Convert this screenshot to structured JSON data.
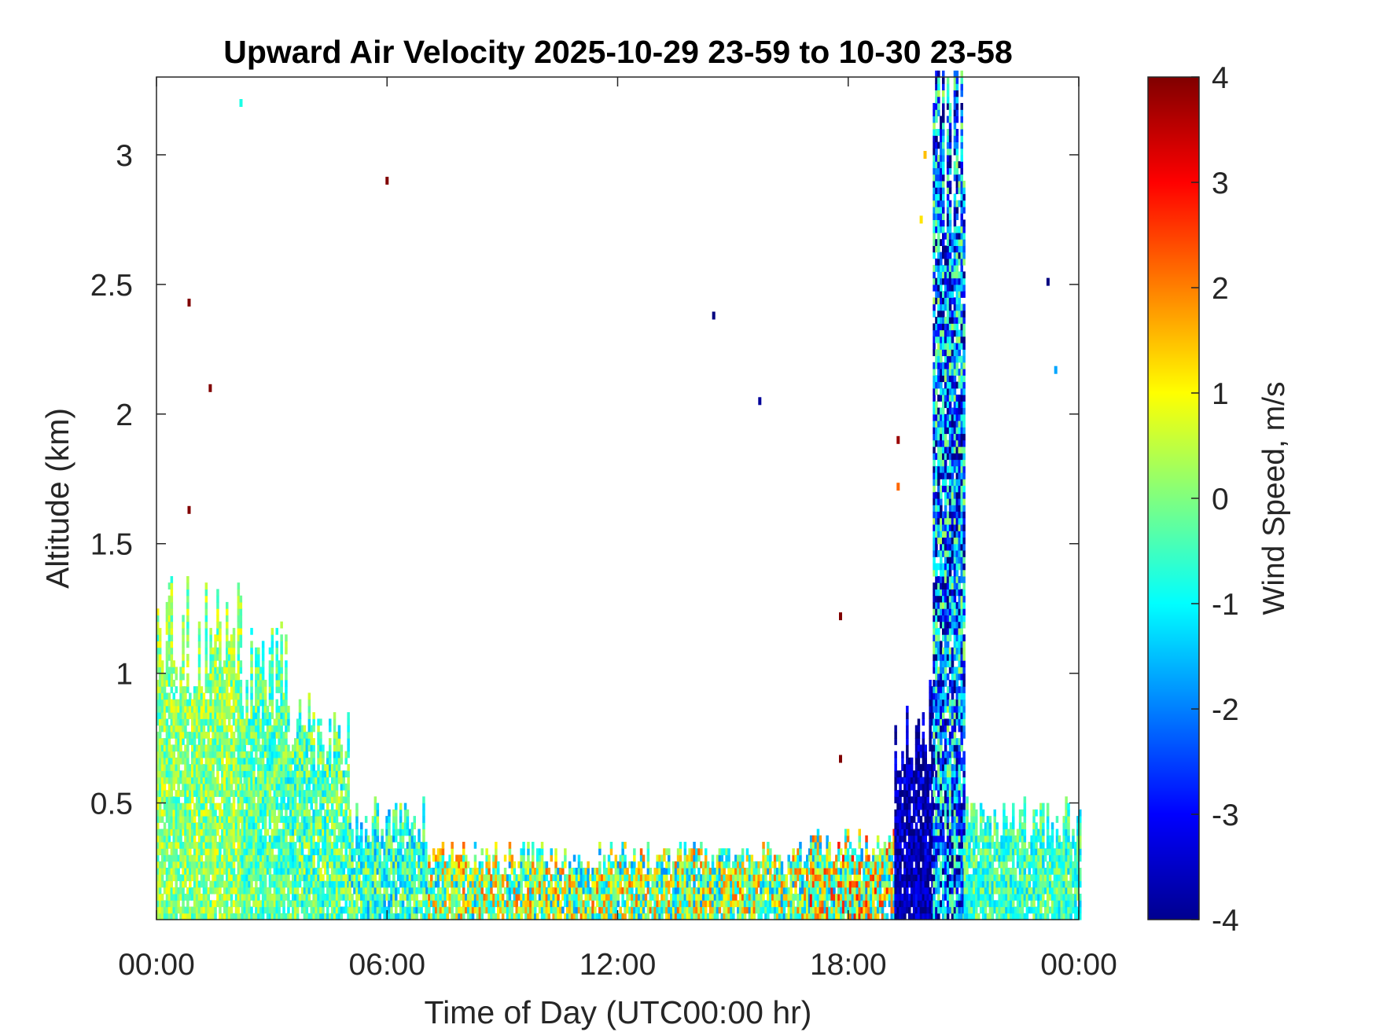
{
  "chart_data": {
    "type": "heatmap",
    "title": "Upward Air Velocity 2025-10-29 23-59 to 10-30 23-58",
    "xlabel": "Time of Day (UTC00:00 hr)",
    "ylabel": "Altitude (km)",
    "xlim": [
      0,
      24
    ],
    "ylim": [
      0.05,
      3.3
    ],
    "x_ticks": [
      0,
      6,
      12,
      18,
      24
    ],
    "x_tick_labels": [
      "00:00",
      "06:00",
      "12:00",
      "18:00",
      "00:00"
    ],
    "y_ticks": [
      0.5,
      1,
      1.5,
      2,
      2.5,
      3
    ],
    "y_tick_labels": [
      "0.5",
      "1",
      "1.5",
      "2",
      "2.5",
      "3"
    ],
    "colorbar": {
      "label": "Wind Speed, m/s",
      "range": [
        -4,
        4
      ],
      "colormap": "jet",
      "ticks": [
        -4,
        -3,
        -2,
        -1,
        0,
        1,
        2,
        3,
        4
      ],
      "tick_labels": [
        "-4",
        "-3",
        "-2",
        "-1",
        "0",
        "1",
        "2",
        "3",
        "4"
      ]
    },
    "grid": false,
    "regions": [
      {
        "x": [
          0,
          2.2
        ],
        "y_top": 1.25,
        "mean_velocity": 0.1,
        "spread": 0.6
      },
      {
        "x": [
          2.2,
          3.4
        ],
        "y_top": 1.1,
        "mean_velocity": -0.3,
        "spread": 0.6
      },
      {
        "x": [
          3.4,
          5.0
        ],
        "y_top": 0.8,
        "mean_velocity": -0.3,
        "spread": 0.7
      },
      {
        "x": [
          5.0,
          7.0
        ],
        "y_top": 0.45,
        "mean_velocity": -0.6,
        "spread": 0.8
      },
      {
        "x": [
          7.0,
          17.0
        ],
        "y_top": 0.3,
        "mean_velocity": 0.2,
        "spread": 1.3
      },
      {
        "x": [
          17.0,
          19.2
        ],
        "y_top": 0.35,
        "mean_velocity": 0.5,
        "spread": 1.5
      },
      {
        "x": [
          19.2,
          20.2
        ],
        "y_top": 0.85,
        "mean_velocity": -3.6,
        "spread": 0.5
      },
      {
        "x": [
          20.2,
          21.0
        ],
        "y_top": 3.3,
        "mean_velocity": -2.0,
        "spread": 1.5
      },
      {
        "x": [
          21.0,
          24
        ],
        "y_top": 0.45,
        "mean_velocity": -0.5,
        "spread": 0.6
      }
    ],
    "isolated_points": [
      {
        "x": 0.85,
        "y": 2.43,
        "v": 4
      },
      {
        "x": 1.4,
        "y": 2.1,
        "v": 4
      },
      {
        "x": 0.85,
        "y": 1.63,
        "v": 4
      },
      {
        "x": 6.0,
        "y": 2.9,
        "v": 4
      },
      {
        "x": 14.5,
        "y": 2.38,
        "v": -4
      },
      {
        "x": 15.7,
        "y": 2.05,
        "v": -3.8
      },
      {
        "x": 17.8,
        "y": 1.22,
        "v": 4
      },
      {
        "x": 17.8,
        "y": 0.67,
        "v": 4
      },
      {
        "x": 23.2,
        "y": 2.51,
        "v": -4
      },
      {
        "x": 23.4,
        "y": 2.17,
        "v": -1.7
      },
      {
        "x": 2.2,
        "y": 3.2,
        "v": -0.8
      },
      {
        "x": 19.3,
        "y": 1.9,
        "v": 3.8
      },
      {
        "x": 19.3,
        "y": 1.72,
        "v": 2.2
      },
      {
        "x": 19.9,
        "y": 2.75,
        "v": 1.2
      },
      {
        "x": 20.0,
        "y": 3.0,
        "v": 1.5
      }
    ]
  }
}
